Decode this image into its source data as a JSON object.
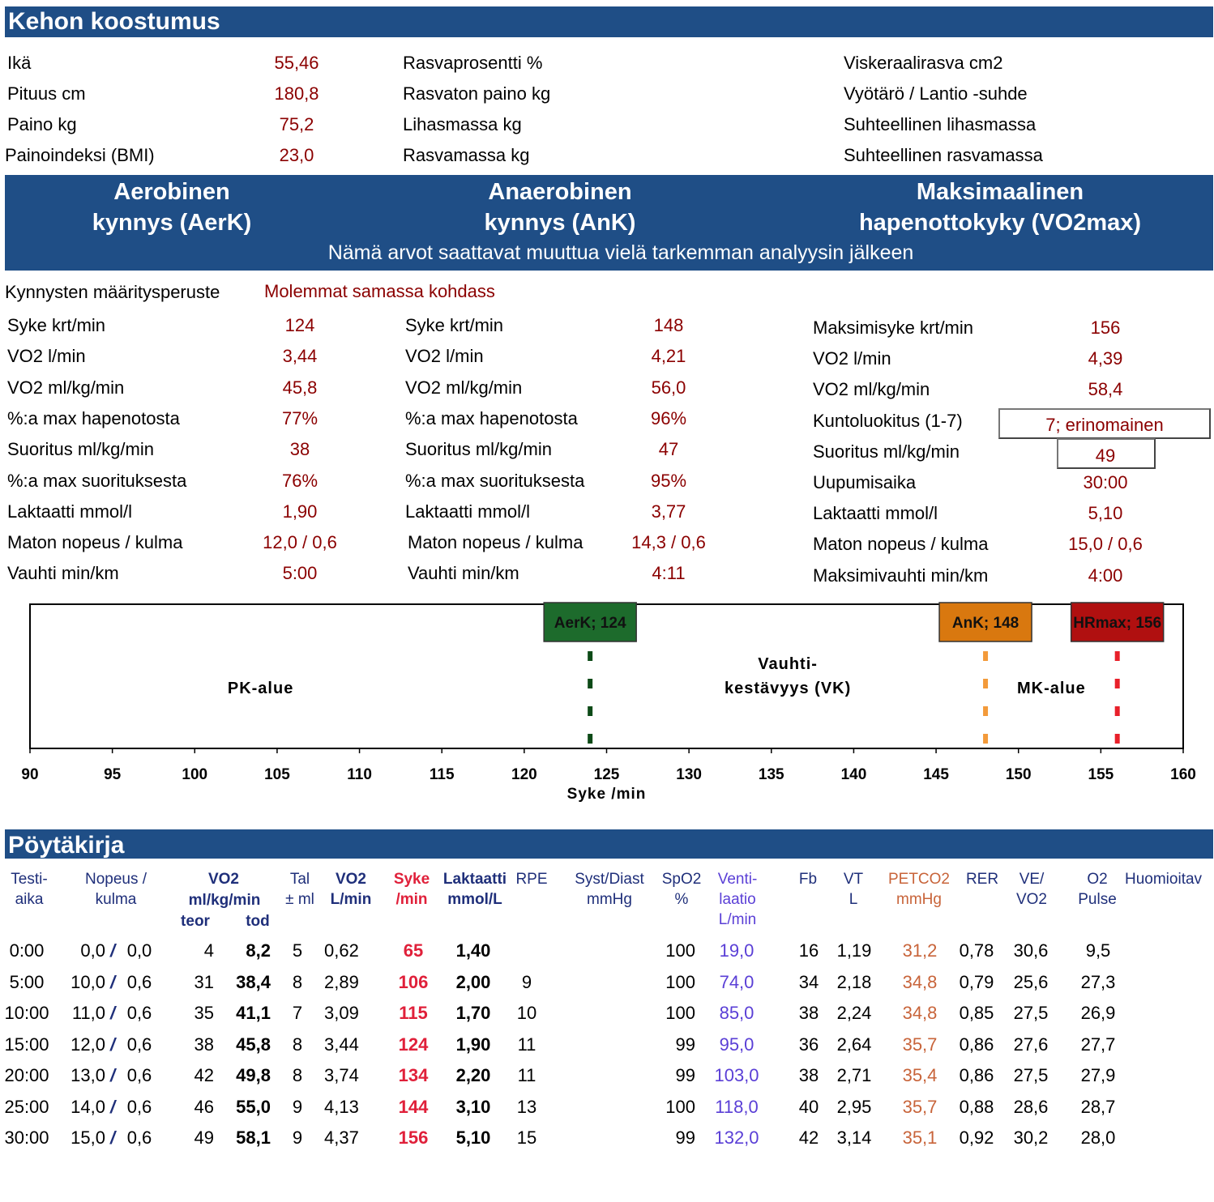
{
  "body_composition": {
    "title": "Kehon koostumus",
    "col1": [
      {
        "label": "Ikä",
        "value": "55,46"
      },
      {
        "label": "Pituus cm",
        "value": "180,8"
      },
      {
        "label": "Paino kg",
        "value": "75,2"
      },
      {
        "label": "Painoindeksi (BMI)",
        "value": "23,0"
      }
    ],
    "col2": [
      "Rasvaprosentti %",
      "Rasvaton paino kg",
      "Lihasmassa kg",
      "Rasvamassa kg"
    ],
    "col3": [
      "Viskeraalirasva cm2",
      "Vyötärö / Lantio -suhde",
      "Suhteellinen lihasmassa",
      "Suhteellinen rasvamassa"
    ]
  },
  "thresholds_header": {
    "aerobic": [
      "Aerobinen",
      "kynnys (AerK)"
    ],
    "anaerobic": [
      "Anaerobinen",
      "kynnys (AnK)"
    ],
    "vo2max": [
      "Maksimaalinen",
      "hapenottokyky (VO2max)"
    ],
    "note": "Nämä arvot saattavat muuttua vielä tarkemman analyysin jälkeen"
  },
  "basis": {
    "label": "Kynnysten määritysperuste",
    "value": "Molemmat samassa kohdass"
  },
  "aerk": [
    {
      "label": "Syke krt/min",
      "value": "124"
    },
    {
      "label": "VO2 l/min",
      "value": "3,44"
    },
    {
      "label": "VO2 ml/kg/min",
      "value": "45,8"
    },
    {
      "label": "%:a max hapenotosta",
      "value": "77%"
    },
    {
      "label": "Suoritus ml/kg/min",
      "value": "38"
    },
    {
      "label": "%:a max suorituksesta",
      "value": "76%"
    },
    {
      "label": "Laktaatti mmol/l",
      "value": "1,90"
    },
    {
      "label": "Maton nopeus / kulma",
      "value": "12,0 / 0,6"
    },
    {
      "label": "Vauhti min/km",
      "value": "5:00"
    }
  ],
  "ank": [
    {
      "label": "Syke krt/min",
      "value": "148"
    },
    {
      "label": "VO2 l/min",
      "value": "4,21"
    },
    {
      "label": "VO2 ml/kg/min",
      "value": "56,0"
    },
    {
      "label": "%:a max hapenotosta",
      "value": "96%"
    },
    {
      "label": "Suoritus ml/kg/min",
      "value": "47"
    },
    {
      "label": "%:a max suorituksesta",
      "value": "95%"
    },
    {
      "label": "Laktaatti mmol/l",
      "value": "3,77"
    },
    {
      "label": "Maton nopeus / kulma",
      "value": "14,3 / 0,6"
    },
    {
      "label": "Vauhti min/km",
      "value": "4:11"
    }
  ],
  "vo2max": [
    {
      "label": "Maksimisyke krt/min",
      "value": "156"
    },
    {
      "label": "VO2 l/min",
      "value": "4,39"
    },
    {
      "label": "VO2 ml/kg/min",
      "value": "58,4"
    },
    {
      "label": "Kuntoluokitus (1-7)",
      "value": "7; erinomainen"
    },
    {
      "label": "Suoritus ml/kg/min",
      "value": "49"
    },
    {
      "label": "Uupumisaika",
      "value": "30:00"
    },
    {
      "label": "Laktaatti mmol/l",
      "value": "5,10"
    },
    {
      "label": "Maton nopeus / kulma",
      "value": "15,0 / 0,6"
    },
    {
      "label": "Maksimivauhti min/km",
      "value": "4:00"
    }
  ],
  "zone_chart": {
    "xmin": 90,
    "xmax": 160,
    "ticks": [
      "90",
      "95",
      "100",
      "105",
      "110",
      "115",
      "120",
      "125",
      "130",
      "135",
      "140",
      "145",
      "150",
      "155",
      "160"
    ],
    "xlabel": "Syke /min",
    "markers": [
      {
        "label": "AerK; 124",
        "value": 124,
        "color": "#1d6b2c",
        "line": "#0d4a17"
      },
      {
        "label": "AnK; 148",
        "value": 148,
        "color": "#d9780f",
        "line": "#f39a3a"
      },
      {
        "label": "HRmax; 156",
        "value": 156,
        "color": "#b01010",
        "line": "#e8202a"
      }
    ],
    "zones": [
      {
        "lines": [
          "PK-alue"
        ],
        "center": 104
      },
      {
        "lines": [
          "Vauhti-",
          "kestävyys (VK)"
        ],
        "center": 136
      },
      {
        "lines": [
          "MK-alue"
        ],
        "center": 152
      }
    ]
  },
  "protocol": {
    "title": "Pöytäkirja",
    "headers": {
      "time": [
        "Testi-",
        "aika"
      ],
      "speed": [
        "Nopeus /",
        "kulma"
      ],
      "vo2": "VO2",
      "vo2_unit": "ml/kg/min",
      "teor": "teor",
      "tod": "tod",
      "tal": [
        "Tal",
        "± ml"
      ],
      "vo2l": [
        "VO2",
        "L/min"
      ],
      "hr": [
        "Syke",
        "/min"
      ],
      "lac": [
        "Laktaatti",
        "mmol/L"
      ],
      "rpe": "RPE",
      "bp": [
        "Syst/Diast",
        "mmHg"
      ],
      "spo2": [
        "SpO2",
        "%"
      ],
      "vent": [
        "Venti-",
        "laatio",
        "L/min"
      ],
      "fb": "Fb",
      "vt": [
        "VT",
        "L"
      ],
      "petco2": [
        "PETCO2",
        "mmHg"
      ],
      "rer": "RER",
      "vevo2": [
        "VE/",
        "VO2"
      ],
      "o2pulse": [
        "O2",
        "Pulse"
      ],
      "notes": "Huomioitav"
    },
    "rows": [
      {
        "time": "0:00",
        "speed": "0,0",
        "slash": "/",
        "angle": "0,0",
        "teor": "4",
        "tod": "8,2",
        "tal": "5",
        "vo2l": "0,62",
        "hr": "65",
        "lac": "1,40",
        "rpe": "",
        "spo2": "100",
        "vent": "19,0",
        "fb": "16",
        "vt": "1,19",
        "petco2": "31,2",
        "rer": "0,78",
        "vevo2": "30,6",
        "o2p": "9,5"
      },
      {
        "time": "5:00",
        "speed": "10,0",
        "slash": "/",
        "angle": "0,6",
        "teor": "31",
        "tod": "38,4",
        "tal": "8",
        "vo2l": "2,89",
        "hr": "106",
        "lac": "2,00",
        "rpe": "9",
        "spo2": "100",
        "vent": "74,0",
        "fb": "34",
        "vt": "2,18",
        "petco2": "34,8",
        "rer": "0,79",
        "vevo2": "25,6",
        "o2p": "27,3"
      },
      {
        "time": "10:00",
        "speed": "11,0",
        "slash": "/",
        "angle": "0,6",
        "teor": "35",
        "tod": "41,1",
        "tal": "7",
        "vo2l": "3,09",
        "hr": "115",
        "lac": "1,70",
        "rpe": "10",
        "spo2": "100",
        "vent": "85,0",
        "fb": "38",
        "vt": "2,24",
        "petco2": "34,8",
        "rer": "0,85",
        "vevo2": "27,5",
        "o2p": "26,9"
      },
      {
        "time": "15:00",
        "speed": "12,0",
        "slash": "/",
        "angle": "0,6",
        "teor": "38",
        "tod": "45,8",
        "tal": "8",
        "vo2l": "3,44",
        "hr": "124",
        "lac": "1,90",
        "rpe": "11",
        "spo2": "99",
        "vent": "95,0",
        "fb": "36",
        "vt": "2,64",
        "petco2": "35,7",
        "rer": "0,86",
        "vevo2": "27,6",
        "o2p": "27,7"
      },
      {
        "time": "20:00",
        "speed": "13,0",
        "slash": "/",
        "angle": "0,6",
        "teor": "42",
        "tod": "49,8",
        "tal": "8",
        "vo2l": "3,74",
        "hr": "134",
        "lac": "2,20",
        "rpe": "11",
        "spo2": "99",
        "vent": "103,0",
        "fb": "38",
        "vt": "2,71",
        "petco2": "35,4",
        "rer": "0,86",
        "vevo2": "27,5",
        "o2p": "27,9"
      },
      {
        "time": "25:00",
        "speed": "14,0",
        "slash": "/",
        "angle": "0,6",
        "teor": "46",
        "tod": "55,0",
        "tal": "9",
        "vo2l": "4,13",
        "hr": "144",
        "lac": "3,10",
        "rpe": "13",
        "spo2": "100",
        "vent": "118,0",
        "fb": "40",
        "vt": "2,95",
        "petco2": "35,7",
        "rer": "0,88",
        "vevo2": "28,6",
        "o2p": "28,7"
      },
      {
        "time": "30:00",
        "speed": "15,0",
        "slash": "/",
        "angle": "0,6",
        "teor": "49",
        "tod": "58,1",
        "tal": "9",
        "vo2l": "4,37",
        "hr": "156",
        "lac": "5,10",
        "rpe": "15",
        "spo2": "99",
        "vent": "132,0",
        "fb": "42",
        "vt": "3,14",
        "petco2": "35,1",
        "rer": "0,92",
        "vevo2": "30,2",
        "o2p": "28,0"
      }
    ]
  }
}
